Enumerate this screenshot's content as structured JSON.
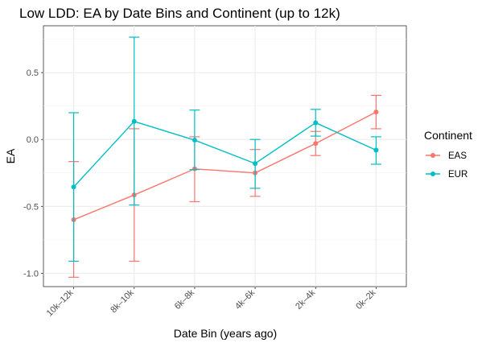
{
  "chart_data": {
    "type": "line",
    "title": "Low LDD: EA by Date Bins and Continent (up to 12k)",
    "xlabel": "Date Bin (years ago)",
    "ylabel": "EA",
    "categories": [
      "10k–12k",
      "8k–10k",
      "6k–8k",
      "4k–6k",
      "2k–4k",
      "0k–2k"
    ],
    "yticks": [
      -1.0,
      -0.5,
      0.0,
      0.5
    ],
    "ytick_labels": [
      "-1.0",
      "-0.5",
      "0.0",
      "0.5"
    ],
    "ylim": [
      -1.1,
      0.85
    ],
    "grid": true,
    "legend": {
      "title": "Continent",
      "position": "right"
    },
    "series": [
      {
        "name": "EAS",
        "color": "#F8766D",
        "values": [
          -0.6,
          -0.415,
          -0.22,
          -0.25,
          -0.03,
          0.205
        ],
        "lower": [
          -1.03,
          -0.91,
          -0.465,
          -0.425,
          -0.12,
          0.08
        ],
        "upper": [
          -0.165,
          0.08,
          0.02,
          -0.075,
          0.06,
          0.33
        ]
      },
      {
        "name": "EUR",
        "color": "#00BFC4",
        "values": [
          -0.355,
          0.135,
          -0.005,
          -0.18,
          0.125,
          -0.08
        ],
        "lower": [
          -0.91,
          -0.49,
          -0.225,
          -0.365,
          0.025,
          -0.185
        ],
        "upper": [
          0.2,
          0.765,
          0.22,
          0.0,
          0.225,
          0.02
        ]
      }
    ]
  }
}
